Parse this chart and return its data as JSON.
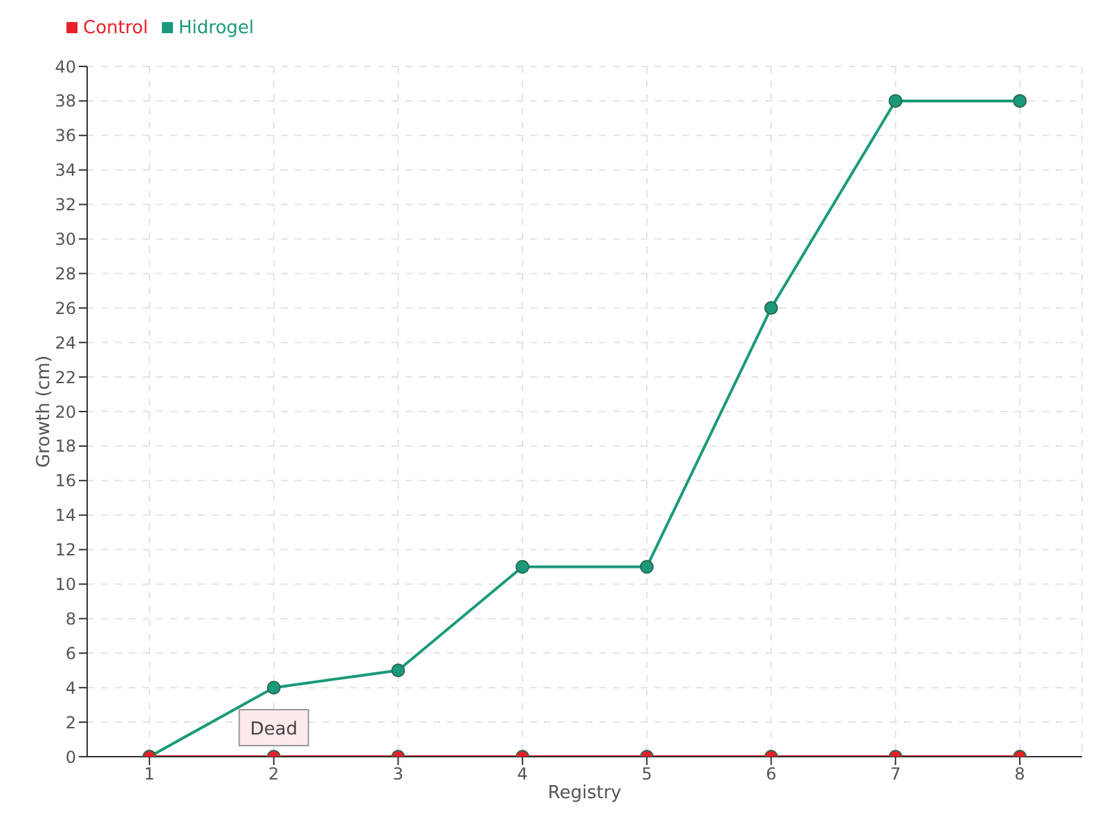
{
  "chart_data": {
    "type": "line",
    "xlabel": "Registry",
    "ylabel": "Growth (cm)",
    "categories": [
      "1",
      "2",
      "3",
      "4",
      "5",
      "6",
      "7",
      "8"
    ],
    "series": [
      {
        "name": "Hidrogel",
        "color": "#1a9a7a",
        "values": [
          0,
          4,
          5,
          11,
          11,
          26,
          38,
          38
        ]
      },
      {
        "name": "Control",
        "color": "#e8202a",
        "values": [
          0,
          0,
          0,
          0,
          0,
          0,
          0,
          0
        ]
      }
    ],
    "ylim": [
      0,
      40
    ],
    "yticks": [
      0,
      2,
      4,
      6,
      8,
      10,
      12,
      14,
      16,
      18,
      20,
      22,
      24,
      26,
      28,
      30,
      32,
      34,
      36,
      38,
      40
    ],
    "grid": true,
    "legend": "top left",
    "marker": "circle",
    "line_style": "solid",
    "annotations": [
      {
        "text": "Dead",
        "x": "2",
        "y": 0
      }
    ]
  }
}
